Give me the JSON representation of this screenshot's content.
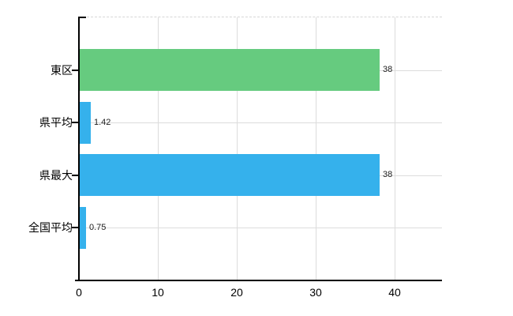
{
  "chart_data": {
    "type": "bar",
    "orientation": "horizontal",
    "title": "",
    "xlabel": "",
    "ylabel": "",
    "categories": [
      "東区",
      "県平均",
      "県最大",
      "全国平均"
    ],
    "values": [
      38,
      1.42,
      38,
      0.75
    ],
    "value_labels": [
      "38",
      "1.42",
      "38",
      "0.75"
    ],
    "bar_colors": [
      "#66CB7F",
      "#35B1EC",
      "#35B1EC",
      "#35B1EC"
    ],
    "x_ticks": [
      0,
      10,
      20,
      30,
      40
    ],
    "xlim": [
      0,
      46
    ],
    "grid": true,
    "legend": "none"
  },
  "colors": {
    "bar_green": "#66CB7F",
    "bar_blue": "#35B1EC",
    "grid": "#DCDCDC",
    "top_border": "#D6D6D6",
    "axis": "#000000",
    "category_label": "#000000",
    "tick_label": "#000000",
    "value_label": "#222222",
    "background": "#FFFFFF"
  }
}
